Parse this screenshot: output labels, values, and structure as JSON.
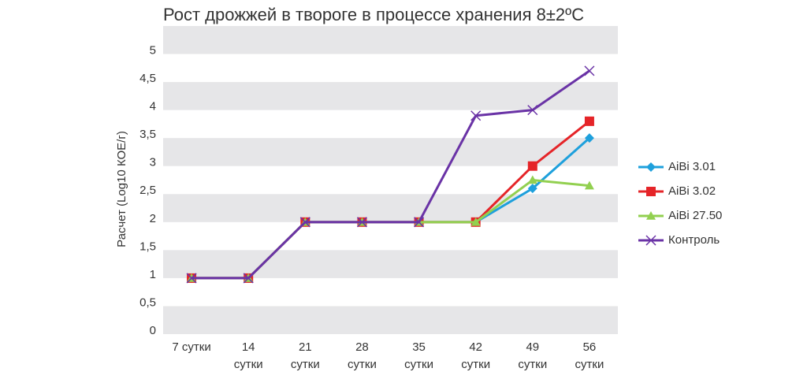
{
  "chart_data": {
    "type": "line",
    "title": "Рост дрожжей в твороге в процессе хранения 8±2ºС",
    "y_label": "Расчет (Log10 КОЕ/г)",
    "categories": [
      "7 сутки",
      "14 сутки",
      "21 сутки",
      "28 сутки",
      "35 сутки",
      "42 сутки",
      "49 сутки",
      "56 сутки"
    ],
    "series": [
      {
        "name": "AiBi 3.01",
        "color": "#1ea0dc",
        "marker": "diamond",
        "values": [
          1,
          1,
          2,
          2,
          2,
          2,
          2.6,
          3.5
        ]
      },
      {
        "name": "AiBi 3.02",
        "color": "#e52428",
        "marker": "square",
        "values": [
          1,
          1,
          2,
          2,
          2,
          2,
          3,
          3.8
        ]
      },
      {
        "name": "AiBi 27.50",
        "color": "#92d050",
        "marker": "triangle",
        "values": [
          1,
          1,
          2,
          2,
          2,
          2,
          2.75,
          2.65
        ]
      },
      {
        "name": "Контроль",
        "color": "#6a33a6",
        "marker": "x",
        "values": [
          1,
          1,
          2,
          2,
          2,
          3.9,
          4,
          4.7
        ]
      }
    ],
    "ylim": [
      0,
      5.5
    ],
    "yticks": [
      0,
      {
        "value": 0.5,
        "label": "0,5"
      },
      1,
      {
        "value": 1.5,
        "label": "1,5"
      },
      2,
      {
        "value": 2.5,
        "label": "2,5"
      },
      3,
      {
        "value": 3.5,
        "label": "3,5"
      },
      4,
      {
        "value": 4.5,
        "label": "4,5"
      },
      5
    ],
    "grid": "bands",
    "legend": "right"
  }
}
